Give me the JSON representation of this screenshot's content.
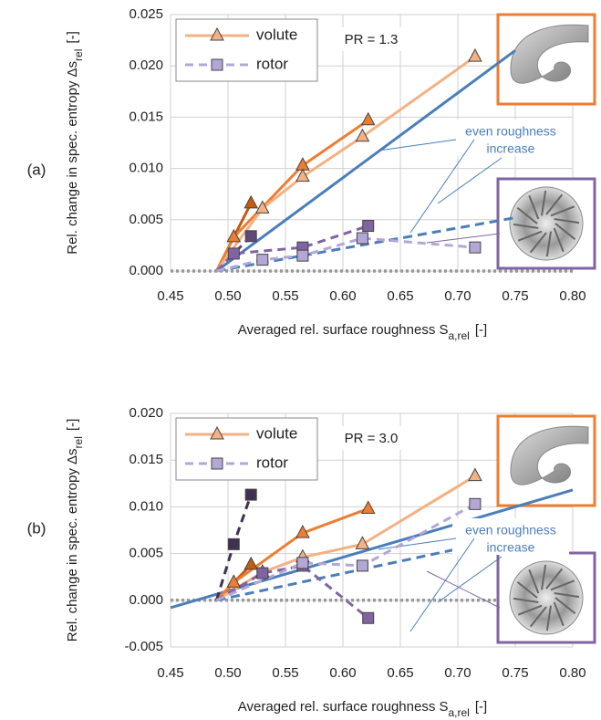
{
  "chart_data": [
    {
      "type": "line",
      "panel": "(a)",
      "annotation": "PR = 1.3",
      "note": [
        "even roughness",
        "increase"
      ],
      "x_label": {
        "text": "Averaged rel. surface roughness  S",
        "sub": "a,rel",
        "unit": "[-]"
      },
      "y_label": {
        "text": "Rel. change in spec. entropy  Δs",
        "sub": "rel",
        "unit": "[-]"
      },
      "xlim": [
        0.45,
        0.8
      ],
      "xticks": [
        0.45,
        {
          "value": 0.5,
          "label": "0.50"
        },
        0.55,
        {
          "value": 0.6,
          "label": "0.60"
        },
        0.65,
        {
          "value": 0.7,
          "label": "0.70"
        },
        0.75,
        {
          "value": 0.8,
          "label": "0.80"
        }
      ],
      "ylim": [
        0,
        0.025
      ],
      "yticks": [
        {
          "value": 0,
          "label": "0.000"
        },
        {
          "value": 0.005,
          "label": "0.005"
        },
        {
          "value": 0.01,
          "label": "0.010"
        },
        {
          "value": 0.015,
          "label": "0.015"
        },
        {
          "value": 0.02,
          "label": "0.020"
        },
        {
          "value": 0.025,
          "label": "0.025"
        }
      ],
      "grid": true,
      "legend": "upper left",
      "baseline": 0,
      "series": [
        {
          "name": "volute",
          "color": "#f4b183",
          "marker": "triangle",
          "dashed": false,
          "lines": [
            {
              "color": "#c55a11",
              "x": [
                0.49,
                0.52
              ],
              "values": [
                0,
                0.0066
              ]
            },
            {
              "color": "#ed7d31",
              "x": [
                0.49,
                0.505,
                0.565,
                0.622
              ],
              "values": [
                0,
                0.0033,
                0.0103,
                0.0147
              ]
            },
            {
              "color": "#f4b183",
              "x": [
                0.49,
                0.53,
                0.565,
                0.617,
                0.715
              ],
              "values": [
                0,
                0.0061,
                0.0092,
                0.0131,
                0.0209
              ]
            }
          ]
        },
        {
          "name": "rotor",
          "color": "#b4a7d6",
          "marker": "square",
          "dashed": true,
          "lines": [
            {
              "color": "#5f497a",
              "x": [
                0.49,
                0.52
              ],
              "values": [
                0,
                0.0034
              ]
            },
            {
              "color": "#8064a2",
              "x": [
                0.49,
                0.505,
                0.565,
                0.622
              ],
              "values": [
                0,
                0.0017,
                0.0023,
                0.0044
              ]
            },
            {
              "color": "#b4a7d6",
              "x": [
                0.49,
                0.53,
                0.565,
                0.617,
                0.715
              ],
              "values": [
                0,
                0.0011,
                0.0015,
                0.0032,
                0.0023
              ]
            }
          ]
        }
      ],
      "trends": [
        {
          "color": "#4a7ebb",
          "dashed": false,
          "x": [
            0.49,
            0.75
          ],
          "values": [
            0,
            0.0215
          ]
        },
        {
          "color": "#4a7ebb",
          "dashed": true,
          "x": [
            0.49,
            0.75
          ],
          "values": [
            0,
            0.0052
          ]
        }
      ]
    },
    {
      "type": "line",
      "panel": "(b)",
      "annotation": "PR = 3.0",
      "note": [
        "even roughness",
        "increase"
      ],
      "x_label": {
        "text": "Averaged rel. surface roughness  S",
        "sub": "a,rel",
        "unit": "[-]"
      },
      "y_label": {
        "text": "Rel. change in spec. entropy  Δs",
        "sub": "rel",
        "unit": "[-]"
      },
      "xlim": [
        0.45,
        0.8
      ],
      "xticks": [
        0.45,
        {
          "value": 0.5,
          "label": "0.50"
        },
        0.55,
        {
          "value": 0.6,
          "label": "0.60"
        },
        0.65,
        {
          "value": 0.7,
          "label": "0.70"
        },
        0.75,
        {
          "value": 0.8,
          "label": "0.80"
        }
      ],
      "ylim": [
        -0.005,
        0.02
      ],
      "yticks": [
        {
          "value": -0.005,
          "label": "-0.005"
        },
        {
          "value": 0,
          "label": "0.000"
        },
        {
          "value": 0.005,
          "label": "0.005"
        },
        {
          "value": 0.01,
          "label": "0.010"
        },
        {
          "value": 0.015,
          "label": "0.015"
        },
        {
          "value": 0.02,
          "label": "0.020"
        }
      ],
      "grid": true,
      "legend": "upper left",
      "baseline": 0,
      "series": [
        {
          "name": "volute",
          "color": "#f4b183",
          "marker": "triangle",
          "dashed": false,
          "lines": [
            {
              "color": "#c55a11",
              "x": [
                0.49,
                0.52
              ],
              "values": [
                0,
                0.0038
              ]
            },
            {
              "color": "#ed7d31",
              "x": [
                0.49,
                0.505,
                0.565,
                0.622
              ],
              "values": [
                0,
                0.0019,
                0.0072,
                0.0098
              ]
            },
            {
              "color": "#f4b183",
              "x": [
                0.49,
                0.53,
                0.565,
                0.617,
                0.715
              ],
              "values": [
                0,
                0.003,
                0.0046,
                0.006,
                0.0133
              ]
            }
          ]
        },
        {
          "name": "rotor",
          "color": "#b4a7d6",
          "marker": "square",
          "dashed": true,
          "lines": [
            {
              "color": "#3f3151",
              "x": [
                0.49,
                0.505,
                0.52
              ],
              "values": [
                0,
                0.006,
                0.0113
              ]
            },
            {
              "color": "#8064a2",
              "x": [
                0.49,
                0.53,
                0.565,
                0.622
              ],
              "values": [
                0,
                0.0029,
                0.0037,
                -0.0019
              ]
            },
            {
              "color": "#b4a7d6",
              "x": [
                0.49,
                0.565,
                0.617,
                0.715
              ],
              "values": [
                0,
                0.004,
                0.0037,
                0.0103
              ]
            }
          ]
        }
      ],
      "trends": [
        {
          "color": "#4a7ebb",
          "dashed": false,
          "x": [
            0.45,
            0.8
          ],
          "values": [
            -0.0008,
            0.0118
          ]
        },
        {
          "color": "#4a7ebb",
          "dashed": true,
          "x": [
            0.49,
            0.75
          ],
          "values": [
            0,
            0.0068
          ]
        }
      ]
    }
  ]
}
